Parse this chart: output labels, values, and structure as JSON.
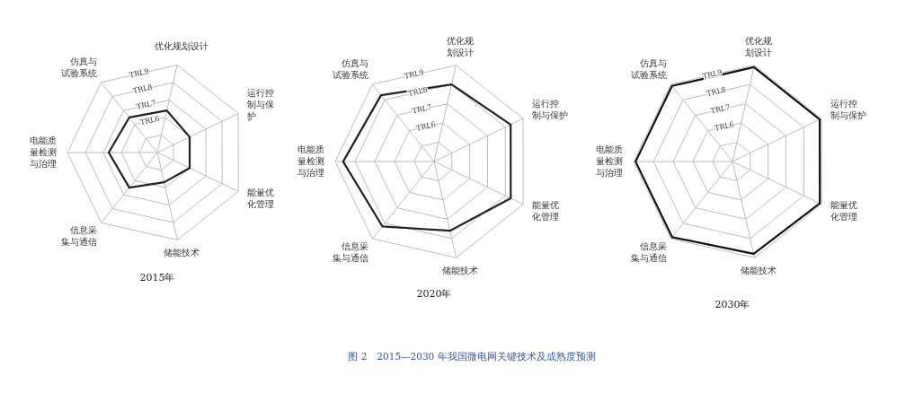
{
  "chart_data": [
    {
      "type": "radar",
      "title": "2015年",
      "categories": [
        "优化规划设计",
        "运行控制与保护",
        "能量优化管理",
        "储能技术",
        "信息采集与通信",
        "电能质量检测与治理",
        "仿真与试验系统"
      ],
      "series": [
        {
          "color": "#222222",
          "values": [
            6.4,
            6.0,
            6.0,
            5.7,
            6.5,
            6.7,
            6.5
          ]
        }
      ],
      "ylim": [
        4,
        9
      ],
      "yticks": [
        {
          "value": 6,
          "label": "TRL6"
        },
        {
          "value": 7,
          "label": "TRL7"
        },
        {
          "value": 8,
          "label": "TRL8"
        },
        {
          "value": 9,
          "label": "TRL9"
        }
      ],
      "grid": true
    },
    {
      "type": "radar",
      "title": "2020年",
      "categories": [
        "优化规划设计",
        "运行控制与保护",
        "能量优化管理",
        "储能技术",
        "信息采集与通信",
        "电能质量检测与治理",
        "仿真与试验系统"
      ],
      "series": [
        {
          "color": "#222222",
          "values": [
            8.0,
            8.3,
            8.3,
            7.6,
            8.2,
            8.6,
            8.3
          ]
        }
      ],
      "ylim": [
        4,
        9
      ],
      "yticks": [
        {
          "value": 6,
          "label": "TRL6"
        },
        {
          "value": 7,
          "label": "TRL7"
        },
        {
          "value": 8,
          "label": "TRL8"
        },
        {
          "value": 9,
          "label": "TRL9"
        }
      ],
      "grid": true
    },
    {
      "type": "radar",
      "title": "2030年",
      "categories": [
        "优化规划设计",
        "运行控制与保护",
        "能量优化管理",
        "储能技术",
        "信息采集与通信",
        "电能质量检测与治理",
        "仿真与试验系统"
      ],
      "series": [
        {
          "color": "#111111",
          "values": [
            8.9,
            8.9,
            8.9,
            8.8,
            8.9,
            8.9,
            8.9
          ]
        }
      ],
      "ylim": [
        4,
        9
      ],
      "yticks": [
        {
          "value": 6,
          "label": "TRL6"
        },
        {
          "value": 7,
          "label": "TRL7"
        },
        {
          "value": 8,
          "label": "TRL8"
        },
        {
          "value": 9,
          "label": "TRL9"
        }
      ],
      "grid": true,
      "annotations": [
        "图 2　2015—2030 年我国微电网关键技术及成熟度预测"
      ]
    }
  ]
}
